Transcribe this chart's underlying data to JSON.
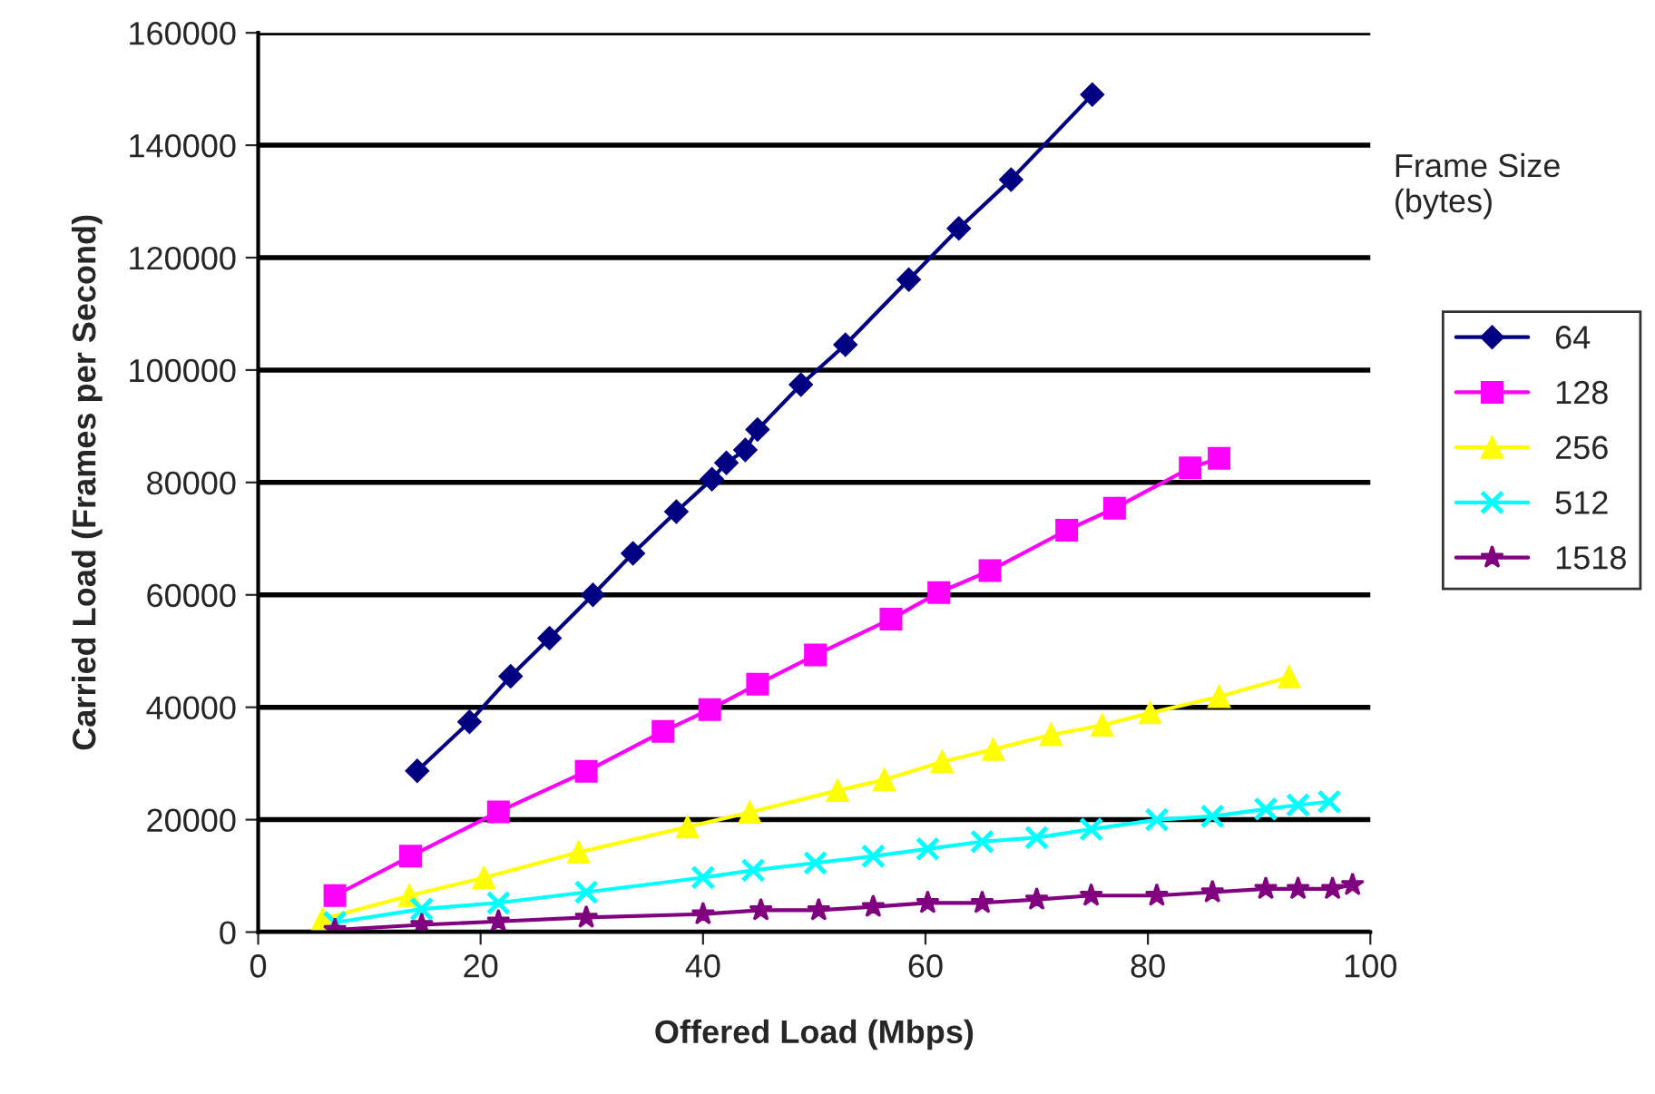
{
  "chart_data": {
    "type": "line",
    "xlabel": "Offered Load (Mbps)",
    "ylabel": "Carried Load (Frames per Second)",
    "legend_title": "Frame Size\n(bytes)",
    "xlim": [
      0,
      100
    ],
    "xticks": [
      0,
      20,
      40,
      60,
      80,
      100
    ],
    "ylim": [
      0,
      160000
    ],
    "yticks": [
      0,
      20000,
      40000,
      60000,
      80000,
      100000,
      120000,
      140000,
      160000
    ],
    "grid": "y",
    "legend": "right",
    "series": [
      {
        "name": "64",
        "color": "#000080",
        "marker": "diamond",
        "x": [
          14.3,
          19.0,
          22.7,
          26.2,
          30.1,
          33.7,
          37.6,
          40.8,
          42.1,
          43.8,
          44.9,
          48.8,
          52.8,
          58.5,
          63.0,
          67.7,
          75.0
        ],
        "values": [
          28700,
          37400,
          45500,
          52300,
          60000,
          67400,
          74800,
          80600,
          83500,
          85800,
          89400,
          97400,
          104500,
          116100,
          125200,
          133900,
          149000
        ]
      },
      {
        "name": "128",
        "color": "#ff00ff",
        "marker": "square",
        "x": [
          6.9,
          13.7,
          21.6,
          29.5,
          36.4,
          40.6,
          44.9,
          50.1,
          56.9,
          61.2,
          65.8,
          72.7,
          77.0,
          83.8,
          86.4
        ],
        "values": [
          6500,
          13500,
          21400,
          28600,
          35700,
          39600,
          44100,
          49300,
          55700,
          60400,
          64300,
          71500,
          75400,
          82600,
          84300
        ]
      },
      {
        "name": "256",
        "color": "#ffff00",
        "marker": "triangle",
        "x": [
          5.8,
          13.6,
          20.3,
          28.8,
          38.6,
          44.2,
          52.1,
          56.3,
          61.5,
          66.1,
          71.3,
          75.9,
          80.2,
          86.4,
          92.7
        ],
        "values": [
          2300,
          6500,
          9700,
          14200,
          18700,
          21300,
          25200,
          27100,
          30300,
          32500,
          35100,
          36800,
          39000,
          41900,
          45400
        ]
      },
      {
        "name": "512",
        "color": "#00ffff",
        "marker": "cross",
        "x": [
          6.9,
          14.7,
          21.6,
          29.5,
          40.0,
          44.5,
          50.1,
          55.3,
          60.2,
          65.1,
          70.0,
          74.9,
          80.8,
          85.8,
          90.6,
          93.5,
          96.3
        ],
        "values": [
          1700,
          4100,
          5200,
          7100,
          9700,
          11000,
          12300,
          13500,
          14800,
          16100,
          16800,
          18300,
          20000,
          20600,
          21900,
          22600,
          23200
        ]
      },
      {
        "name": "1518",
        "color": "#800080",
        "marker": "star",
        "x": [
          6.9,
          14.7,
          21.6,
          29.5,
          40.0,
          45.2,
          50.4,
          55.3,
          60.2,
          65.1,
          70.0,
          74.9,
          80.8,
          85.8,
          90.6,
          93.5,
          96.6,
          98.4
        ],
        "values": [
          400,
          1300,
          1900,
          2600,
          3200,
          3900,
          3900,
          4500,
          5200,
          5200,
          5800,
          6500,
          6500,
          7100,
          7700,
          7700,
          7700,
          8400
        ]
      }
    ]
  }
}
